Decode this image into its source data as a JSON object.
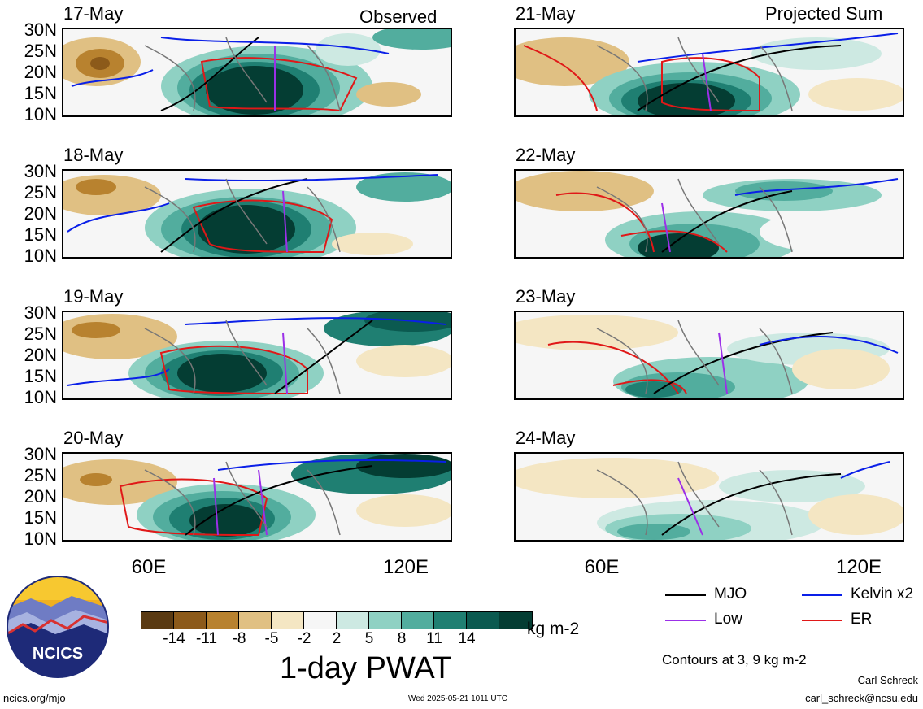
{
  "panels_left": {
    "header_right": "Observed",
    "dates": [
      "17-May",
      "18-May",
      "19-May",
      "20-May"
    ]
  },
  "panels_right": {
    "header_right": "Projected Sum",
    "dates": [
      "21-May",
      "22-May",
      "23-May",
      "24-May"
    ]
  },
  "lat_labels": [
    "30N",
    "25N",
    "20N",
    "15N",
    "10N"
  ],
  "lon_labels": [
    "60E",
    "120E"
  ],
  "colorbar": {
    "colors": [
      "#5a3a12",
      "#8c5a1a",
      "#b8822f",
      "#e0c083",
      "#f4e6c3",
      "#f6f6f6",
      "#cde9e2",
      "#8fd1c3",
      "#52ad9e",
      "#1f7f72",
      "#0b5a50",
      "#043d33"
    ],
    "ticks": [
      "-14",
      "-11",
      "-8",
      "-5",
      "-2",
      "2",
      "5",
      "8",
      "11",
      "14"
    ],
    "units": "kg m-2",
    "title": "1-day PWAT"
  },
  "legend": {
    "items": [
      {
        "label": "MJO",
        "color": "#000000"
      },
      {
        "label": "Kelvin x2",
        "color": "#0a1fe8"
      },
      {
        "label": "Low",
        "color": "#9b30e8"
      },
      {
        "label": "ER",
        "color": "#e01818"
      }
    ],
    "note": "Contours at 3, 9 kg m-2"
  },
  "logo_text": "NCICS",
  "footer": {
    "url": "ncics.org/mjo",
    "timestamp": "Wed 2025-05-21 1011 UTC",
    "author": "Carl Schreck",
    "email": "carl_schreck@ncsu.edu"
  }
}
